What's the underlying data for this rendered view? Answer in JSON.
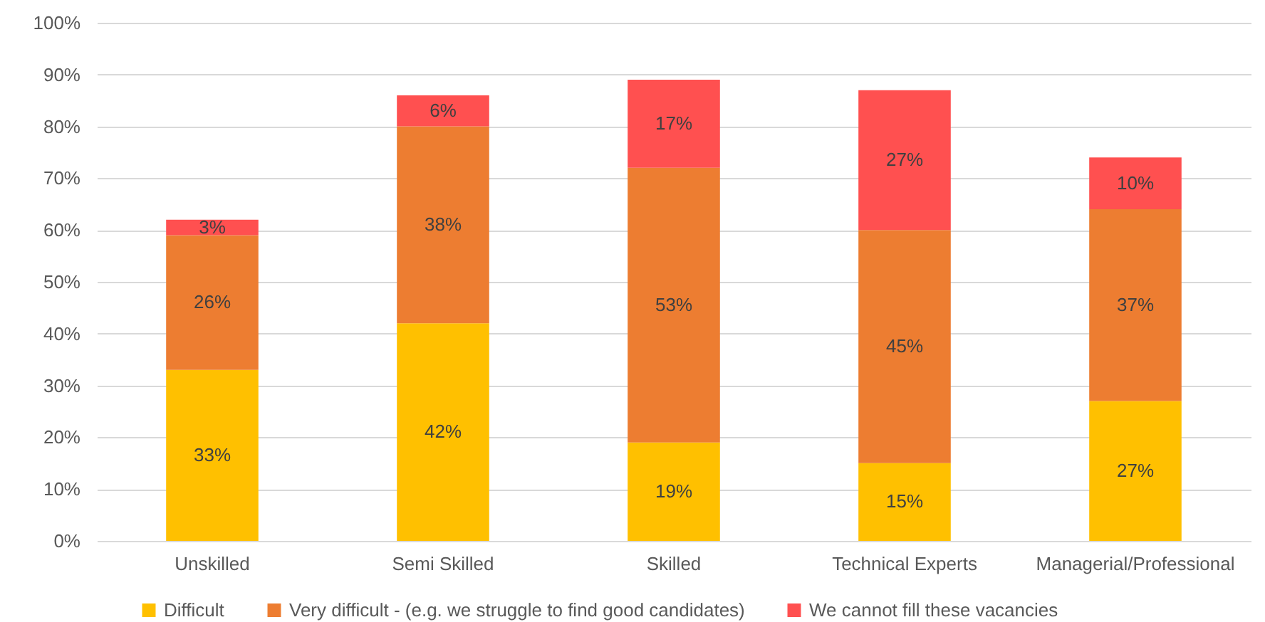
{
  "chart_data": {
    "type": "bar",
    "stacked": true,
    "categories": [
      "Unskilled",
      "Semi Skilled",
      "Skilled",
      "Technical Experts",
      "Managerial/Professional"
    ],
    "series": [
      {
        "name": "Difficult",
        "color": "#ffc000",
        "values": [
          33,
          42,
          19,
          15,
          27
        ],
        "value_labels": [
          "33%",
          "42%",
          "19%",
          "15%",
          "27%"
        ]
      },
      {
        "name": "Very difficult - (e.g. we struggle to find good candidates)",
        "color": "#ed7d31",
        "values": [
          26,
          38,
          53,
          45,
          37
        ],
        "value_labels": [
          "26%",
          "38%",
          "53%",
          "45%",
          "37%"
        ]
      },
      {
        "name": "We cannot fill these vacancies",
        "color": "#ff5050",
        "values": [
          3,
          6,
          17,
          27,
          10
        ],
        "value_labels": [
          "3%",
          "6%",
          "17%",
          "27%",
          "10%"
        ]
      }
    ],
    "ylim": [
      0,
      100
    ],
    "yticks": [
      {
        "value": 0,
        "label": "0%"
      },
      {
        "value": 10,
        "label": "10%"
      },
      {
        "value": 20,
        "label": "20%"
      },
      {
        "value": 30,
        "label": "30%"
      },
      {
        "value": 40,
        "label": "40%"
      },
      {
        "value": 50,
        "label": "50%"
      },
      {
        "value": 60,
        "label": "60%"
      },
      {
        "value": 70,
        "label": "70%"
      },
      {
        "value": 80,
        "label": "80%"
      },
      {
        "value": 90,
        "label": "90%"
      },
      {
        "value": 100,
        "label": "100%"
      }
    ],
    "grid": "y",
    "legend": "bottom"
  }
}
